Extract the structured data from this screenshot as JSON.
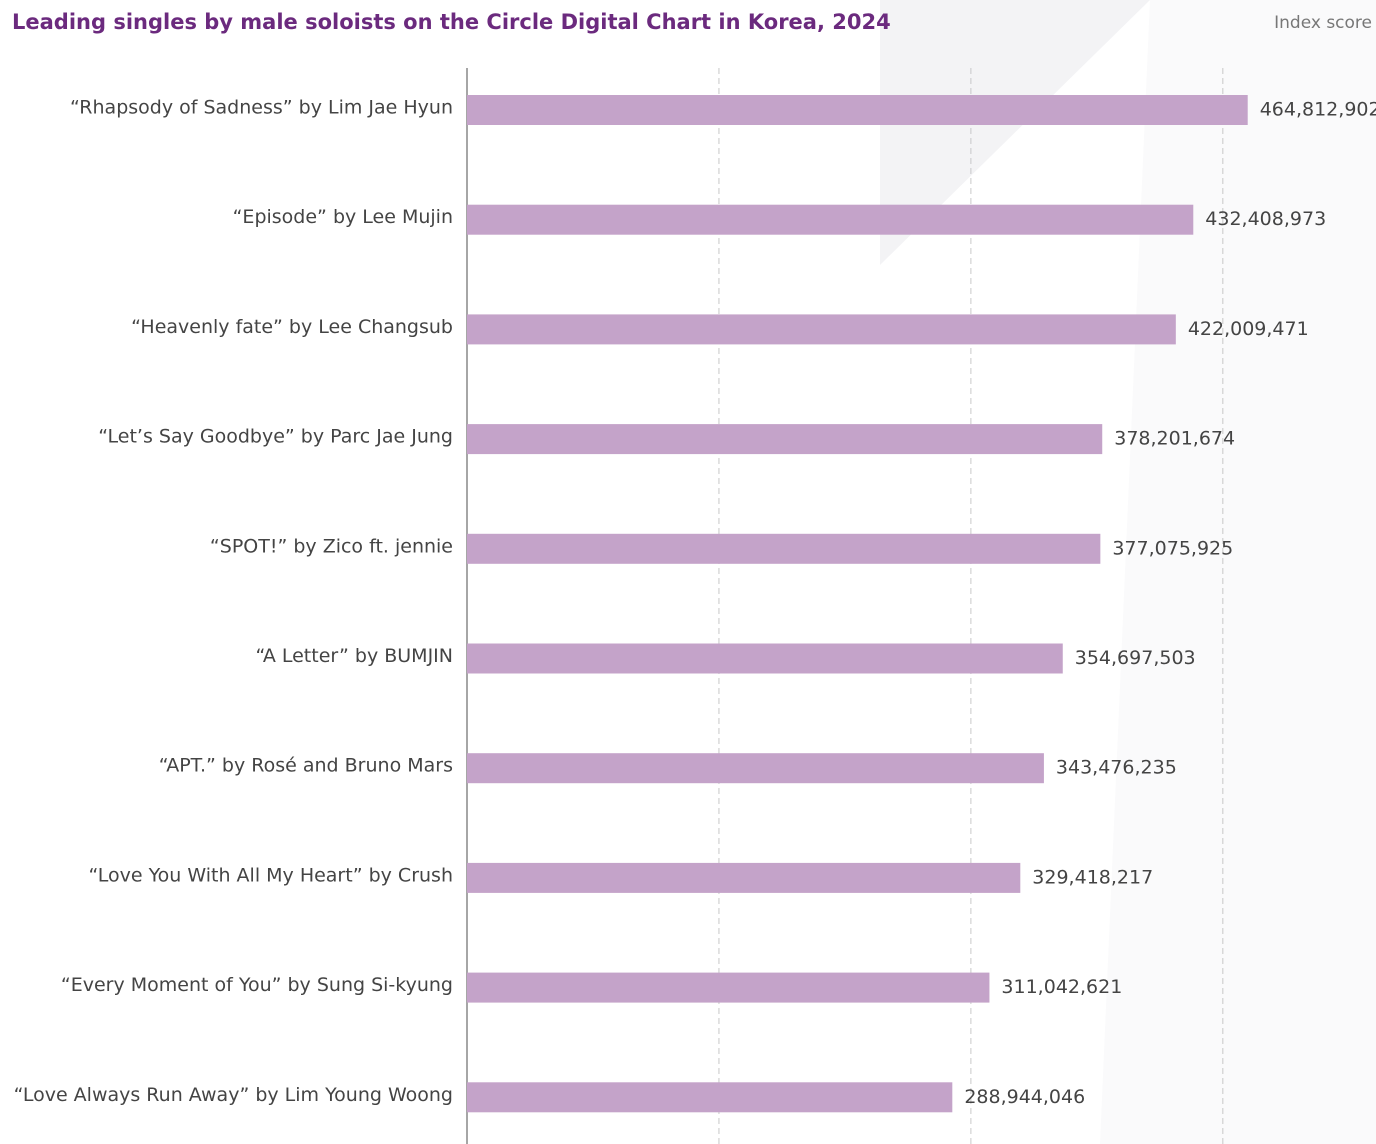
{
  "chart_data": {
    "type": "barh",
    "title": "Leading singles by male soloists on the Circle Digital Chart in Korea, 2024",
    "xlabel": "Index score",
    "categories": [
      "“Rhapsody of Sadness” by Lim Jae Hyun",
      "“Episode” by Lee Mujin",
      "“Heavenly fate” by Lee Changsub",
      "“Let’s Say Goodbye” by Parc Jae Jung",
      "“SPOT!” by Zico ft. jennie",
      "“A Letter” by BUMJIN",
      "“APT.” by Rosé and Bruno Mars",
      "“Love You With All My Heart” by Crush",
      "“Every Moment of You” by Sung Si-kyung",
      "“Love Always Run Away” by Lim Young Woong"
    ],
    "values": [
      464812902,
      432408973,
      422009471,
      378201674,
      377075925,
      354697503,
      343476235,
      329418217,
      311042621,
      288944046
    ],
    "value_labels": [
      "464,812,902",
      "432,408,973",
      "422,009,471",
      "378,201,674",
      "377,075,925",
      "354,697,503",
      "343,476,235",
      "329,418,217",
      "311,042,621",
      "288,944,046"
    ],
    "color": "#c4a3c9",
    "xlim": [
      0,
      540000000
    ],
    "xticks": [
      150000000,
      300000000,
      450000000
    ],
    "grid": true
  }
}
